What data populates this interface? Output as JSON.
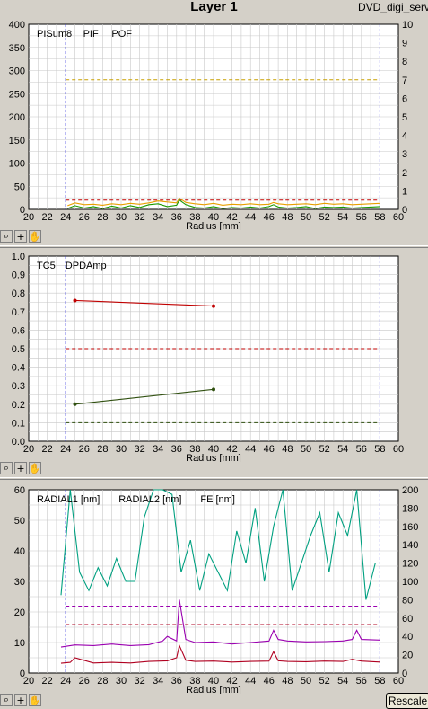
{
  "header": {
    "title": "Layer 1",
    "subtitle": "DVD_digi_serv"
  },
  "toolbar": {
    "zoom_icon": "zoom-icon",
    "cross_icon": "crosshair-icon",
    "pan_icon": "pan-hand-icon"
  },
  "rescale_label": "Rescale",
  "chart_data": [
    {
      "type": "line",
      "xlabel": "Radius [mm]",
      "xlim": [
        20,
        60
      ],
      "xticks": [
        "20",
        "22",
        "24",
        "26",
        "28",
        "30",
        "32",
        "34",
        "36",
        "38",
        "40",
        "42",
        "44",
        "46",
        "48",
        "50",
        "52",
        "54",
        "56",
        "58",
        "60"
      ],
      "ylim": [
        0,
        400
      ],
      "yticks": [
        "0",
        "50",
        "100",
        "150",
        "200",
        "250",
        "300",
        "350",
        "400"
      ],
      "y2lim": [
        0,
        10
      ],
      "y2ticks": [
        "0",
        "1",
        "2",
        "3",
        "4",
        "5",
        "6",
        "7",
        "8",
        "9",
        "10"
      ],
      "markers_x": [
        24,
        58
      ],
      "legend": [
        "PISum8",
        "PIF",
        "POF"
      ],
      "colors": {
        "PISum8": "#e8a000",
        "PIF": "#1a9a00",
        "POF": "#c00000",
        "limit": "#c8a000"
      },
      "limits": [
        {
          "axis": "y",
          "value": 280,
          "color": "#c8a000"
        },
        {
          "axis": "y",
          "value": 20,
          "color": "#c00000"
        }
      ],
      "series": [
        {
          "name": "PISum8",
          "x": [
            24.2,
            25,
            26,
            27,
            28,
            29,
            30,
            31,
            32,
            33,
            34,
            35,
            36,
            36.3,
            37,
            38,
            39,
            40,
            41,
            42,
            43,
            44,
            45,
            46,
            46.5,
            47,
            48,
            49,
            50,
            51,
            52,
            53,
            54,
            55,
            56,
            57,
            58
          ],
          "y": [
            8,
            14,
            10,
            11,
            9,
            12,
            10,
            13,
            11,
            14,
            18,
            16,
            14,
            24,
            15,
            12,
            10,
            13,
            9,
            11,
            10,
            12,
            10,
            11,
            15,
            12,
            10,
            11,
            12,
            10,
            13,
            11,
            12,
            10,
            11,
            12,
            13
          ]
        },
        {
          "name": "PIF",
          "x": [
            24.2,
            25,
            26,
            27,
            28,
            29,
            30,
            31,
            32,
            33,
            34,
            35,
            36,
            36.3,
            37,
            38,
            39,
            40,
            41,
            42,
            43,
            44,
            45,
            46,
            46.5,
            47,
            48,
            49,
            50,
            51,
            52,
            53,
            54,
            55,
            56,
            57,
            58
          ],
          "y": [
            2,
            8,
            3,
            6,
            2,
            7,
            3,
            8,
            4,
            10,
            12,
            6,
            9,
            20,
            10,
            4,
            3,
            6,
            2,
            4,
            3,
            5,
            3,
            6,
            10,
            5,
            3,
            4,
            6,
            2,
            5,
            4,
            5,
            3,
            4,
            5,
            6
          ]
        }
      ]
    },
    {
      "type": "line",
      "xlabel": "Radius [mm]",
      "xlim": [
        20,
        60
      ],
      "xticks": [
        "20",
        "22",
        "24",
        "26",
        "28",
        "30",
        "32",
        "34",
        "36",
        "38",
        "40",
        "42",
        "44",
        "46",
        "48",
        "50",
        "52",
        "54",
        "56",
        "58",
        "60"
      ],
      "ylim": [
        0,
        1
      ],
      "yticks": [
        "0.0",
        "0.1",
        "0.2",
        "0.3",
        "0.4",
        "0.5",
        "0.6",
        "0.7",
        "0.8",
        "0.9",
        "1.0"
      ],
      "markers_x": [
        24,
        58
      ],
      "legend": [
        "TC5",
        "DPDAmp"
      ],
      "colors": {
        "TC5": "#305010",
        "DPDAmp": "#c00000"
      },
      "limits": [
        {
          "axis": "y",
          "value": 0.5,
          "color": "#c00000"
        },
        {
          "axis": "y",
          "value": 0.1,
          "color": "#305010"
        }
      ],
      "series": [
        {
          "name": "TC5",
          "x": [
            25,
            40
          ],
          "y": [
            0.2,
            0.28
          ]
        },
        {
          "name": "DPDAmp",
          "x": [
            25,
            40
          ],
          "y": [
            0.76,
            0.73
          ]
        }
      ]
    },
    {
      "type": "line",
      "xlabel": "Radius [mm]",
      "xlim": [
        20,
        60
      ],
      "xticks": [
        "20",
        "22",
        "24",
        "26",
        "28",
        "30",
        "32",
        "34",
        "36",
        "38",
        "40",
        "42",
        "44",
        "46",
        "48",
        "50",
        "52",
        "54",
        "56",
        "58",
        "60"
      ],
      "ylim": [
        0,
        60
      ],
      "yticks": [
        "0",
        "10",
        "20",
        "30",
        "40",
        "50",
        "60"
      ],
      "y2lim": [
        0,
        200
      ],
      "y2ticks": [
        "0",
        "20",
        "40",
        "60",
        "80",
        "100",
        "120",
        "140",
        "160",
        "180",
        "200"
      ],
      "markers_x": [
        24,
        58
      ],
      "legend": [
        "RADIAL1 [nm]",
        "RADIAL2 [nm]",
        "FE [nm]"
      ],
      "colors": {
        "RADIAL1 [nm]": "#9a00b0",
        "RADIAL2 [nm]": "#b00020",
        "FE [nm]": "#00a080"
      },
      "limits": [
        {
          "axis": "y2",
          "value": 73,
          "color": "#9a00b0"
        },
        {
          "axis": "y2",
          "value": 53,
          "color": "#b00020"
        }
      ],
      "series": [
        {
          "name": "RADIAL1 [nm]",
          "axis": "y",
          "x": [
            23.5,
            25,
            27,
            29,
            31,
            33,
            34.5,
            35,
            36,
            36.3,
            37,
            38,
            40,
            42,
            44,
            46,
            46.5,
            47,
            48,
            50,
            52,
            54,
            55,
            55.5,
            56,
            58
          ],
          "y": [
            8.5,
            9.2,
            9,
            9.5,
            9,
            9.3,
            10.5,
            12,
            10.5,
            24,
            11,
            10,
            10.2,
            9.5,
            10,
            10.5,
            14,
            11,
            10.5,
            10.2,
            10.3,
            10.5,
            11,
            14,
            11,
            10.8
          ]
        },
        {
          "name": "RADIAL2 [nm]",
          "axis": "y",
          "x": [
            23.5,
            24.5,
            25,
            27,
            29,
            31,
            33,
            35,
            36,
            36.3,
            37,
            38,
            40,
            42,
            44,
            46,
            46.5,
            47,
            48,
            50,
            52,
            54,
            55,
            56,
            58
          ],
          "y": [
            3.2,
            3.5,
            5,
            3.3,
            3.5,
            3.3,
            3.8,
            4,
            5,
            9,
            4.2,
            3.8,
            3.9,
            3.6,
            3.8,
            3.9,
            7,
            4,
            3.8,
            3.7,
            3.9,
            3.8,
            4.5,
            3.9,
            3.6
          ]
        },
        {
          "name": "FE [nm]",
          "axis": "y2",
          "x": [
            23.5,
            24.5,
            25.5,
            26.5,
            27.5,
            28.5,
            29.5,
            30.5,
            31.5,
            32.5,
            33.5,
            34.5,
            35.5,
            36.5,
            37.5,
            38.5,
            39.5,
            40.5,
            41.5,
            42.5,
            43.5,
            44.5,
            45.5,
            46.5,
            47.5,
            48.5,
            49.5,
            50.5,
            51.5,
            52.5,
            53.5,
            54.5,
            55.5,
            56.5,
            57.5
          ],
          "y": [
            85,
            200,
            110,
            90,
            115,
            95,
            125,
            100,
            100,
            170,
            200,
            210,
            195,
            110,
            145,
            90,
            130,
            110,
            90,
            155,
            120,
            180,
            100,
            160,
            200,
            90,
            120,
            150,
            175,
            110,
            175,
            150,
            210,
            80,
            120
          ]
        }
      ]
    }
  ]
}
